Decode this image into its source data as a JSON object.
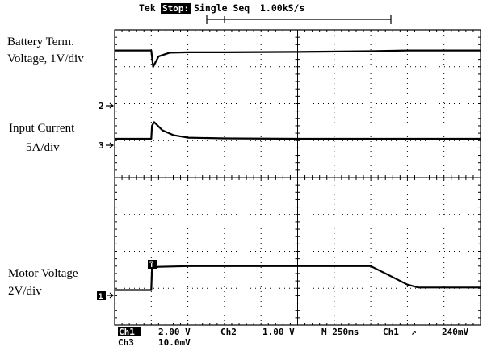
{
  "header": {
    "brand": "Tek",
    "state": "Stop:",
    "mode": "Single Seq",
    "rate": "1.00kS/s"
  },
  "labels": {
    "battery_line1": "Battery Term.",
    "battery_line2": "Voltage, 1V/div",
    "current_line1": "Input Current",
    "current_line2": "5A/div",
    "motor_line1": "Motor Voltage",
    "motor_line2": "2V/div"
  },
  "markers": {
    "m2": "2",
    "m3": "3",
    "m1_box": "1",
    "m1_ground": "1",
    "trigger_t": "T"
  },
  "footer": {
    "ch1_label": "Ch1",
    "ch1_scale": "2.00 V",
    "ch2_label": "Ch2",
    "ch2_scale": "1.00 V",
    "ch3_label": "Ch3",
    "ch3_scale": "10.0mV",
    "timebase": "M 250ms",
    "trig_src": "Ch1",
    "trig_slope": "↗",
    "trig_level": "240mV"
  },
  "chart_data": {
    "type": "line",
    "xunit": "divisions (250ms/div)",
    "xlim": [
      0,
      10
    ],
    "ylim": [
      0,
      8
    ],
    "grid": true,
    "series": [
      {
        "name": "Battery Term. Voltage, 1V/div",
        "color": "#000000",
        "x": [
          0,
          1.0,
          1.05,
          1.2,
          1.5,
          2.0,
          3.0,
          5.0,
          7.0,
          8.0,
          10.0
        ],
        "y": [
          7.44,
          7.44,
          7.0,
          7.28,
          7.38,
          7.39,
          7.39,
          7.4,
          7.42,
          7.44,
          7.44
        ]
      },
      {
        "name": "Input Current 5A/div",
        "color": "#000000",
        "x": [
          0,
          1.0,
          1.02,
          1.08,
          1.3,
          1.6,
          2.0,
          3.0,
          5.0,
          7.0,
          10.0
        ],
        "y": [
          5.05,
          5.05,
          5.4,
          5.5,
          5.28,
          5.15,
          5.08,
          5.06,
          5.05,
          5.05,
          5.05
        ]
      },
      {
        "name": "Motor Voltage 2V/div",
        "color": "#000000",
        "x": [
          0,
          1.0,
          1.02,
          1.2,
          2.0,
          4.0,
          6.0,
          7.0,
          7.5,
          8.0,
          8.3,
          10.0
        ],
        "y": [
          0.95,
          0.95,
          1.55,
          1.58,
          1.6,
          1.6,
          1.6,
          1.6,
          1.35,
          1.1,
          1.02,
          1.02
        ]
      }
    ]
  }
}
